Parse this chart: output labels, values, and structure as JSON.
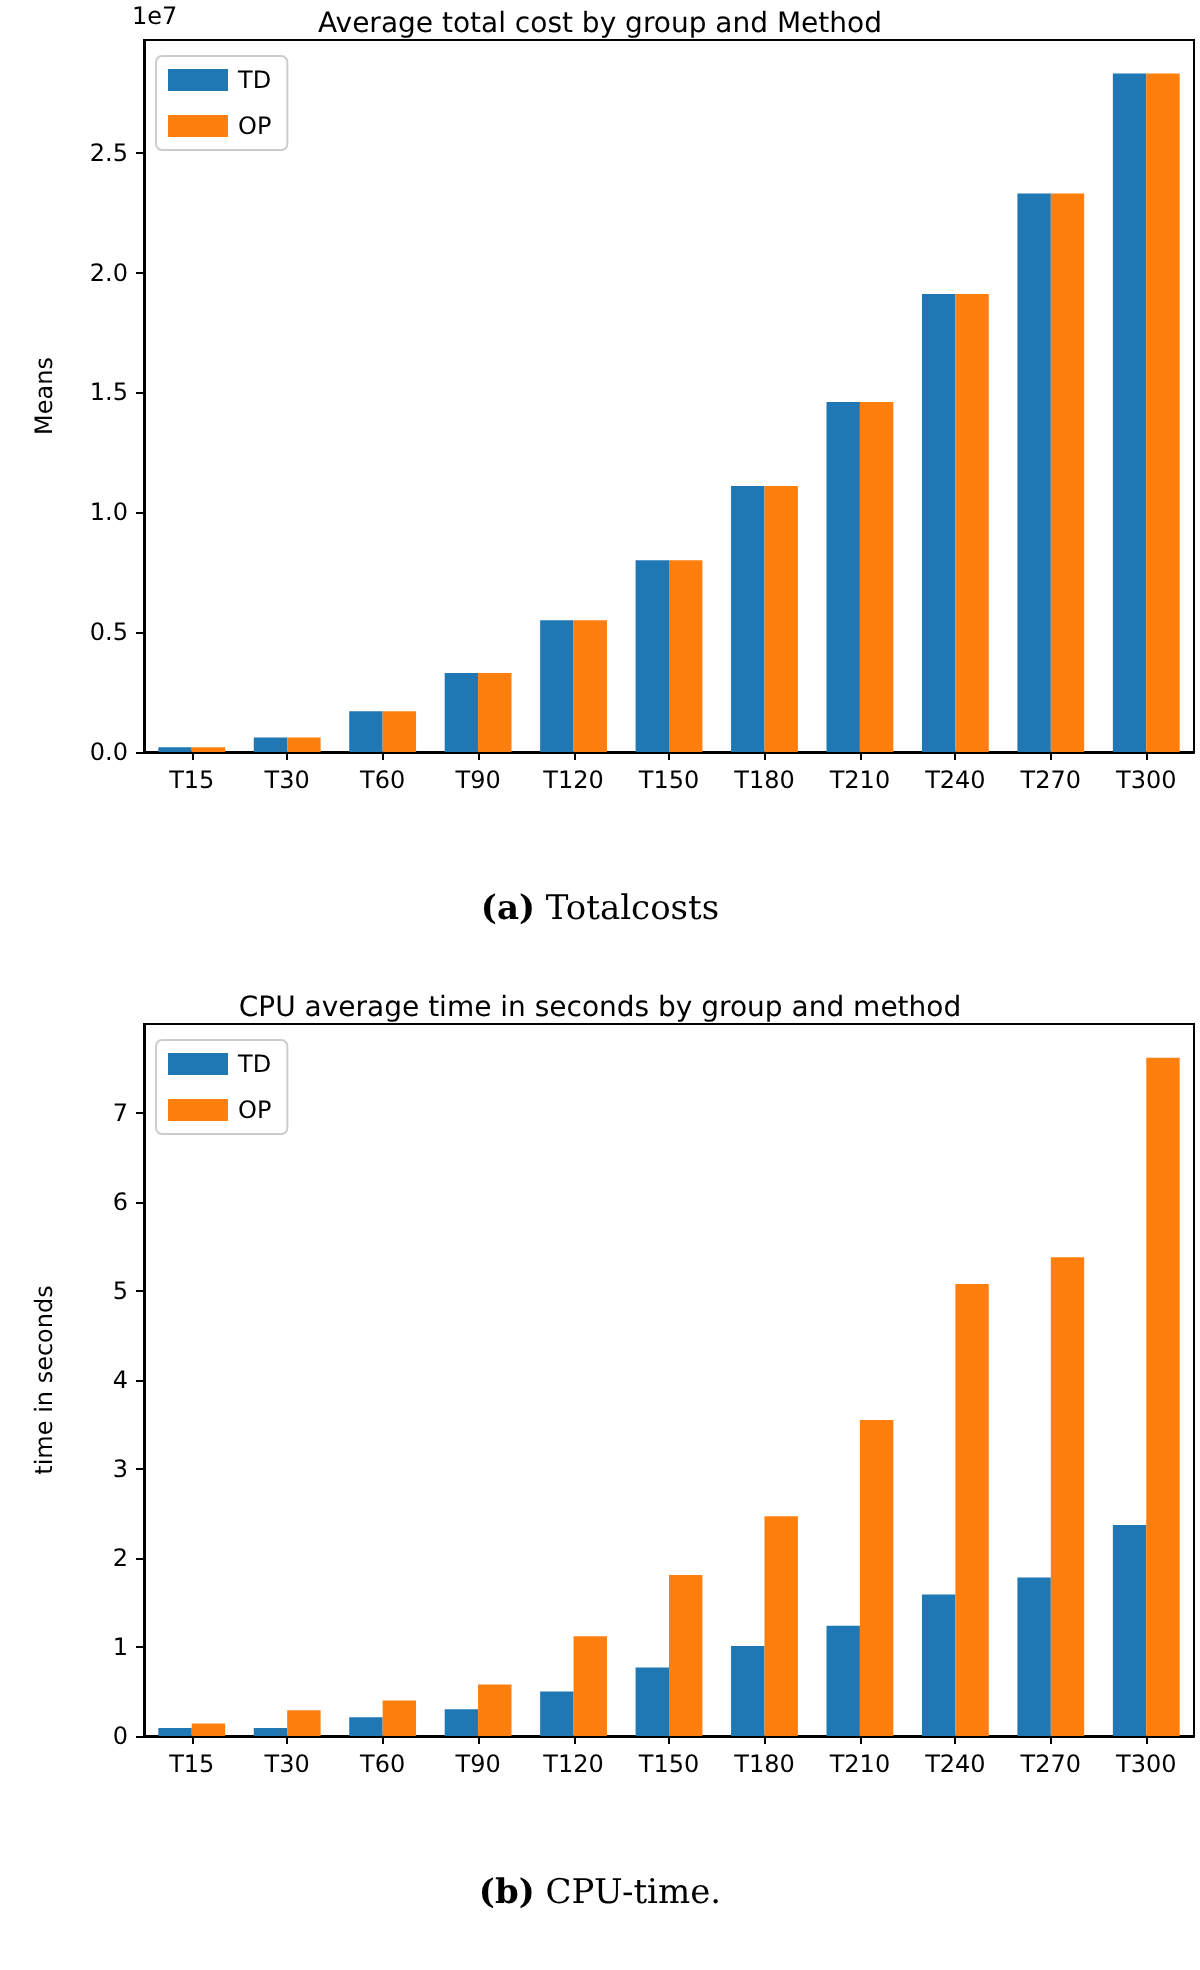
{
  "chart_data": [
    {
      "type": "bar",
      "title": "Average total cost by group and Method",
      "ylabel": "Means",
      "categories": [
        "T15",
        "T30",
        "T60",
        "T90",
        "T120",
        "T150",
        "T180",
        "T210",
        "T240",
        "T270",
        "T300"
      ],
      "series": [
        {
          "name": "TD",
          "color": "#1f77b4",
          "values": [
            0.02,
            0.06,
            0.17,
            0.33,
            0.55,
            0.8,
            1.11,
            1.46,
            1.91,
            2.33,
            2.83
          ]
        },
        {
          "name": "OP",
          "color": "#ff7f0e",
          "values": [
            0.02,
            0.06,
            0.17,
            0.33,
            0.55,
            0.8,
            1.11,
            1.46,
            1.91,
            2.33,
            2.83
          ]
        }
      ],
      "ylim": [
        0,
        2.97
      ],
      "yticks": [
        {
          "value": 0,
          "label": "0.0"
        },
        0.5,
        {
          "value": 1,
          "label": "1.0"
        },
        1.5,
        {
          "value": 2,
          "label": "2.0"
        },
        2.5
      ],
      "grid": false,
      "legend": "top left",
      "annotations": [
        "1e7",
        "(a) Totalcosts"
      ]
    },
    {
      "type": "bar",
      "title": "CPU average time in seconds by group and method",
      "ylabel": "time in seconds",
      "categories": [
        "T15",
        "T30",
        "T60",
        "T90",
        "T120",
        "T150",
        "T180",
        "T210",
        "T240",
        "T270",
        "T300"
      ],
      "series": [
        {
          "name": "TD",
          "color": "#1f77b4",
          "values": [
            0.09,
            0.09,
            0.21,
            0.3,
            0.5,
            0.77,
            1.01,
            1.24,
            1.59,
            1.78,
            2.37
          ]
        },
        {
          "name": "OP",
          "color": "#ff7f0e",
          "values": [
            0.14,
            0.29,
            0.4,
            0.58,
            1.12,
            1.81,
            2.47,
            3.55,
            5.08,
            5.38,
            7.62
          ]
        }
      ],
      "ylim": [
        0,
        8.0
      ],
      "yticks": [
        0,
        1,
        2,
        3,
        4,
        5,
        6,
        7
      ],
      "grid": false,
      "legend": "top left",
      "annotations": [
        "(b) CPU-time."
      ]
    }
  ]
}
